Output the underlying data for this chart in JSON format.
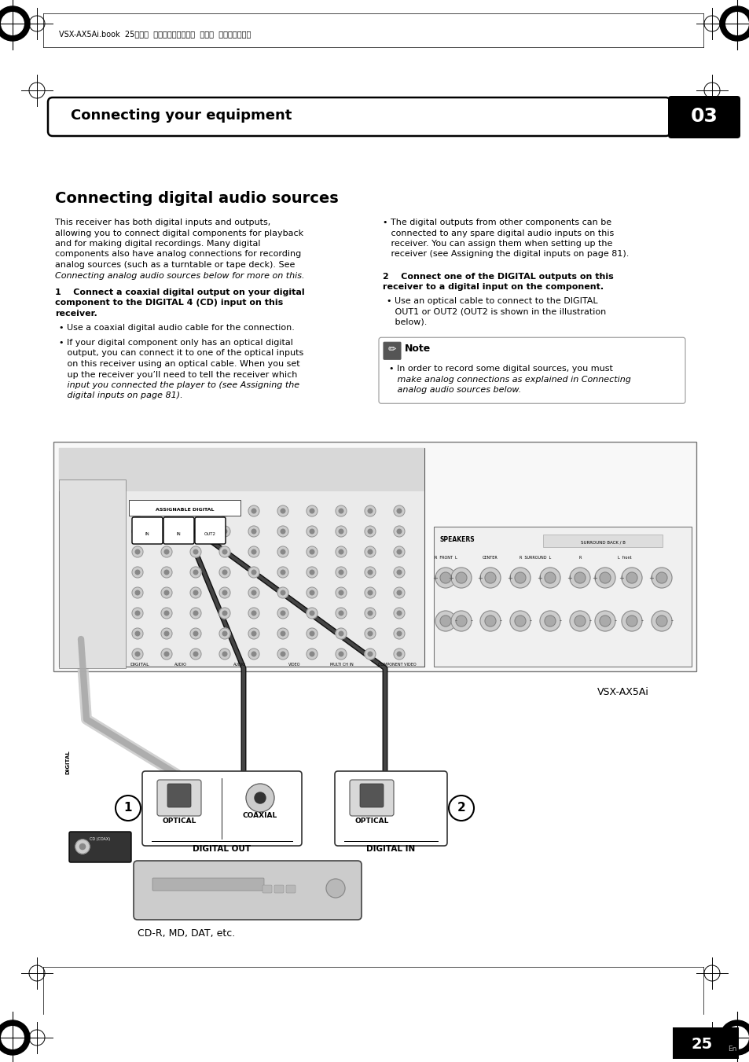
{
  "bg_color": "#ffffff",
  "header_bar_text": "Connecting your equipment",
  "header_number": "03",
  "section_title": "Connecting digital audio sources",
  "col1_para": "This receiver has both digital inputs and outputs,\nallowing you to connect digital components for playback\nand for making digital recordings. Many digital\ncomponents also have analog connections for recording\nanalog sources (such as a turntable or tape deck). See\nConnecting analog audio sources below for more on this.",
  "step1_line1": "1    Connect a coaxial digital output on your digital",
  "step1_line2": "component to the DIGITAL 4 (CD) input on this",
  "step1_line3": "receiver.",
  "step1_b1": "Use a coaxial digital audio cable for the connection.",
  "step1_b2_lines": [
    "If your digital component only has an optical digital",
    "output, you can connect it to one of the optical inputs",
    "on this receiver using an optical cable. When you set",
    "up the receiver you’ll need to tell the receiver which",
    "input you connected the player to (see Assigning the",
    "digital inputs on page 81)."
  ],
  "col2_b1_lines": [
    "The digital outputs from other components can be",
    "connected to any spare digital audio inputs on this",
    "receiver. You can assign them when setting up the",
    "receiver (see Assigning the digital inputs on page 81)."
  ],
  "step2_line1": "2    Connect one of the DIGITAL outputs on this",
  "step2_line2": "receiver to a digital input on the component.",
  "step2_b1_lines": [
    "Use an optical cable to connect to the DIGITAL",
    "OUT1 or OUT2 (OUT2 is shown in the illustration",
    "below)."
  ],
  "note_title": "Note",
  "note_lines": [
    "In order to record some digital sources, you must",
    "make analog connections as explained in Connecting",
    "analog audio sources below."
  ],
  "vsx_label": "VSX-AX5Ai",
  "label1_optical": "OPTICAL",
  "label1_coaxial": "COAXIAL",
  "label1_bottom": "DIGITAL OUT",
  "label2_optical": "OPTICAL",
  "label2_bottom": "DIGITAL IN",
  "cd_label": "CD-R, MD, DAT, etc.",
  "page_num": "25",
  "page_sub": "En",
  "header_file_text": "VSX-AX5Ai.book  25ページ  ２００４年６月２日  水曜日  午後３時２７分"
}
